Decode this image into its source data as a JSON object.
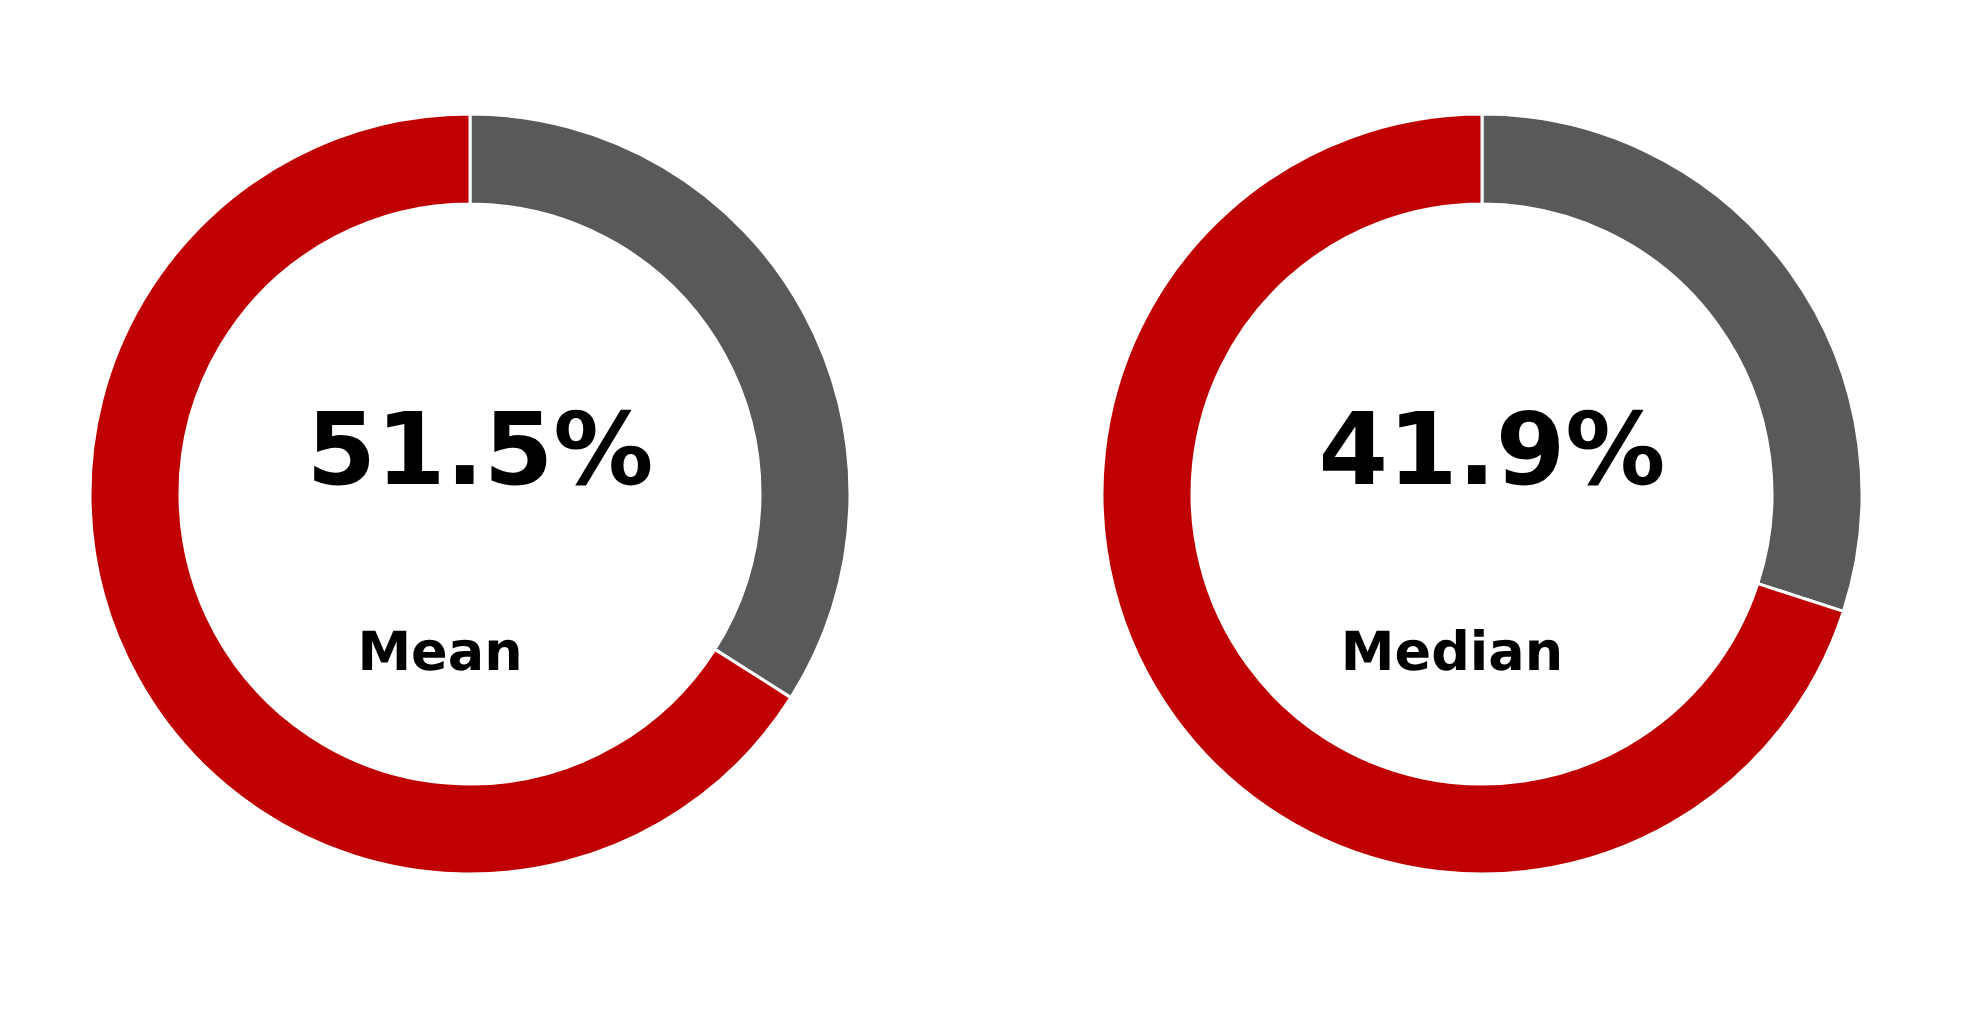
{
  "chart_data": [
    {
      "type": "donut",
      "categories": [
        null,
        null
      ],
      "values": [
        34,
        66
      ],
      "colors": [
        "#595959",
        "#c00000"
      ],
      "annotations": [
        "51.5%",
        "Mean"
      ]
    },
    {
      "type": "donut",
      "categories": [
        null,
        null
      ],
      "values": [
        30,
        70
      ],
      "colors": [
        "#595959",
        "#c00000"
      ],
      "annotations": [
        "41.9%",
        "Median"
      ]
    }
  ]
}
